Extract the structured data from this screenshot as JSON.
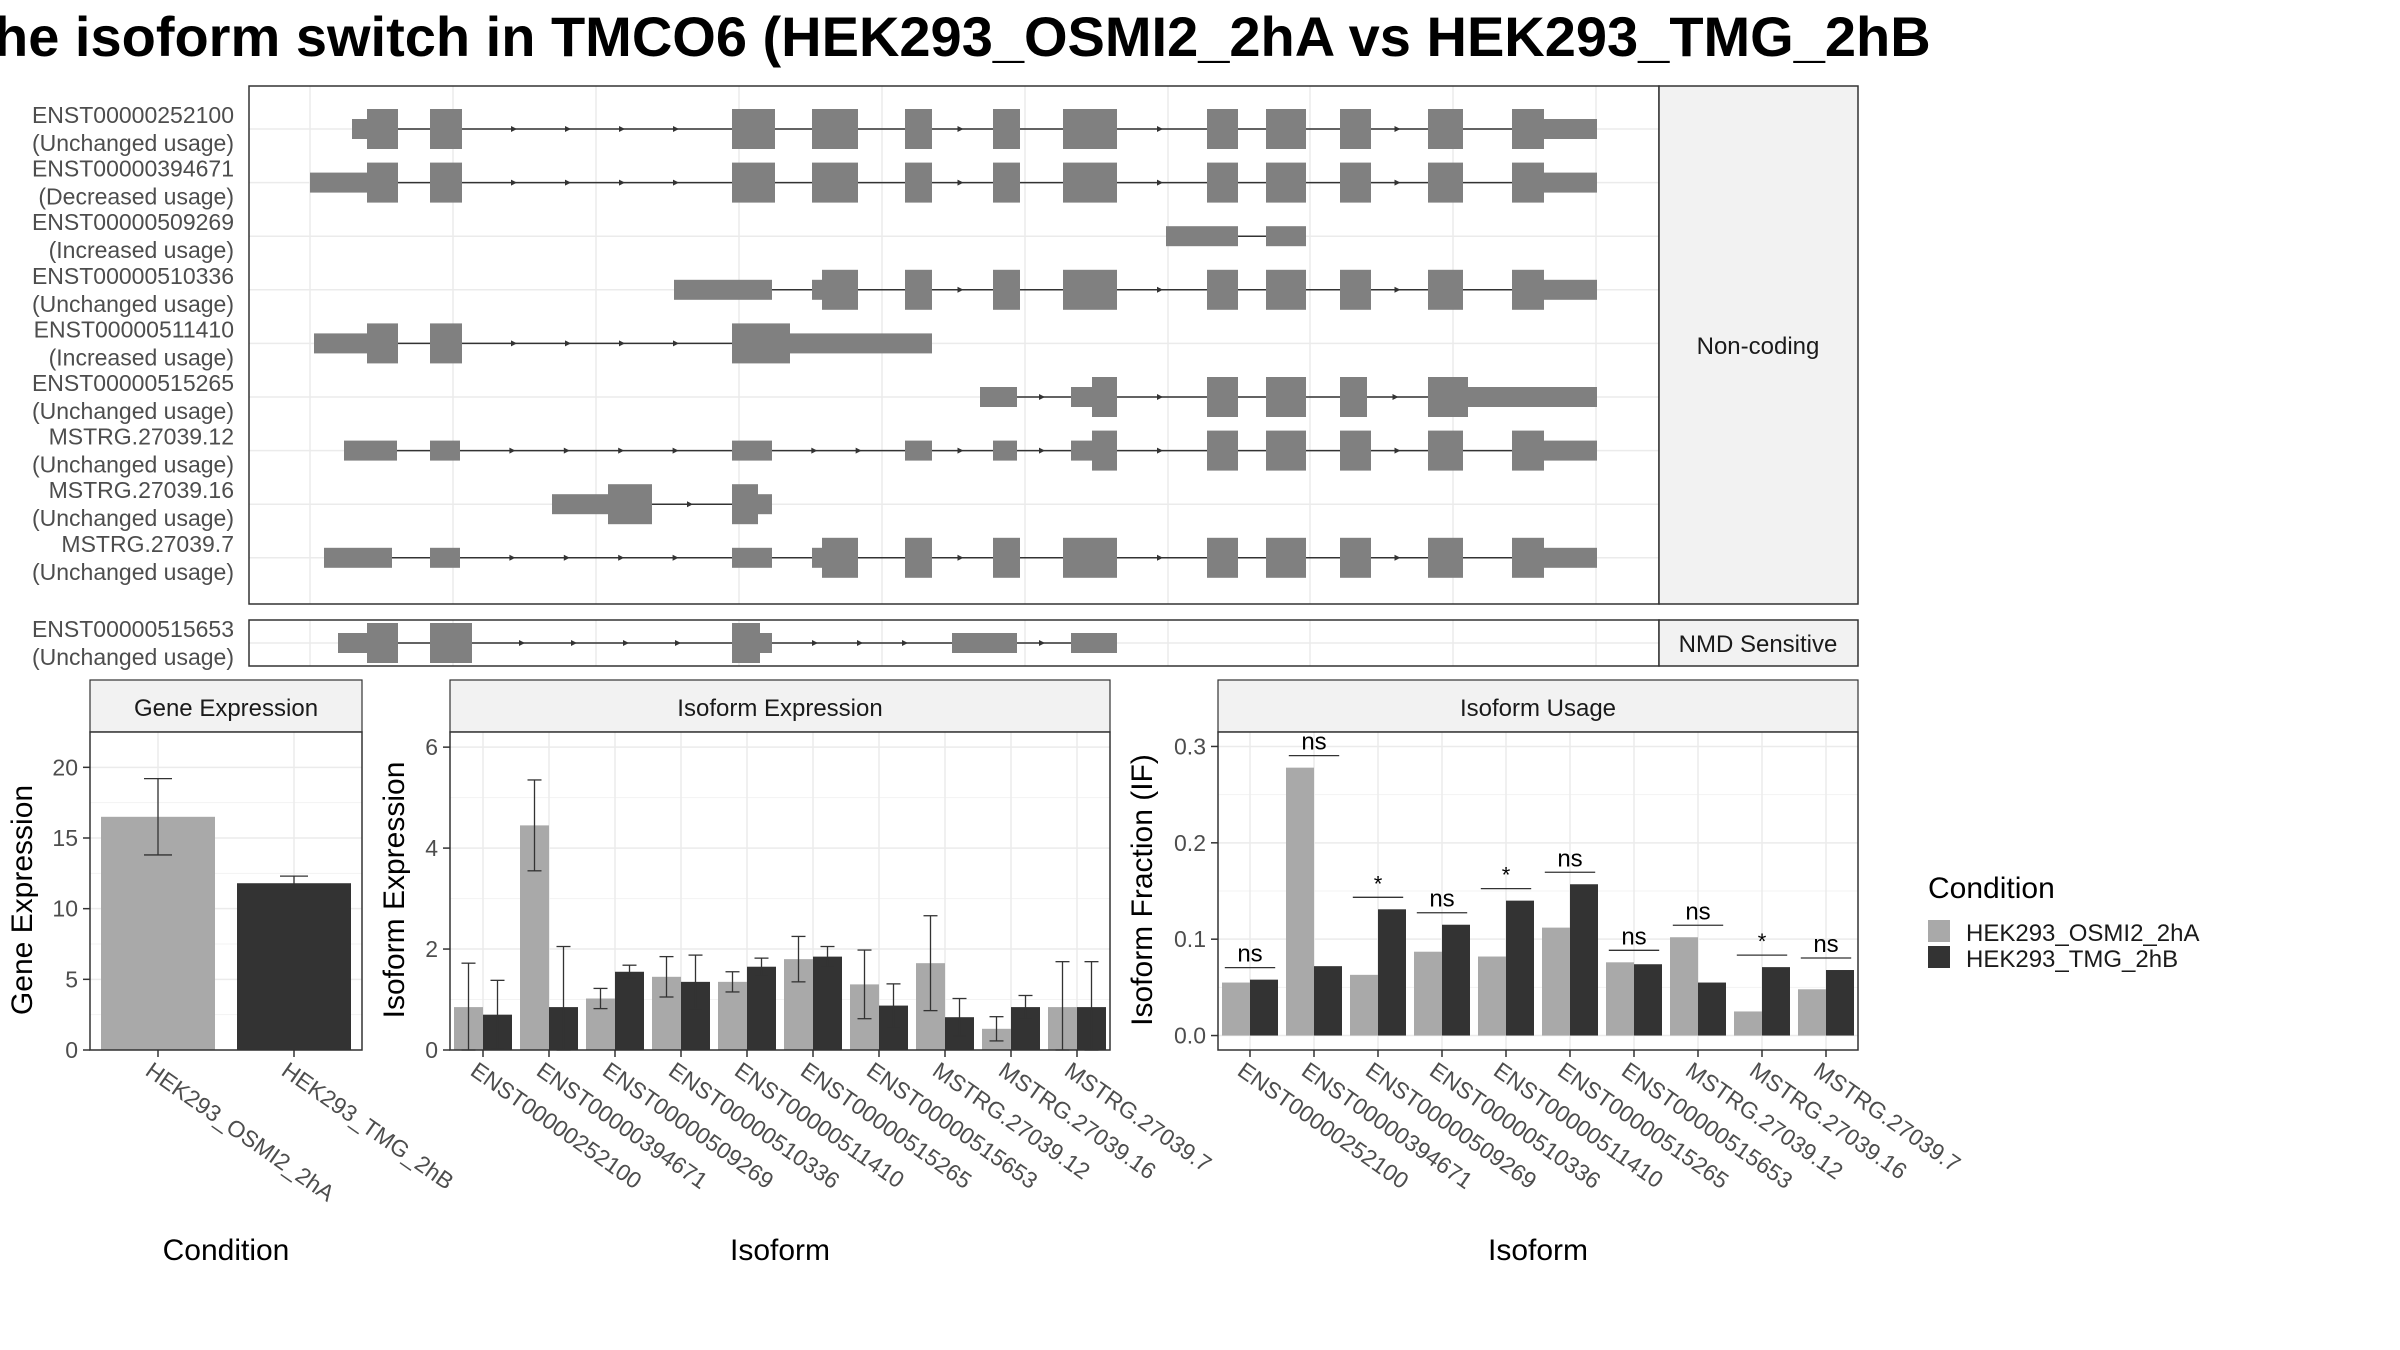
{
  "title": "he isoform switch in TMCO6 (HEK293_OSMI2_2hA vs HEK293_TMG_2hB",
  "colors": {
    "condA": "#a9a9a9",
    "condB": "#333333",
    "gene_model": "#808080",
    "strip": "#f2f2f2",
    "grid": "#ebebeb"
  },
  "chart_data": [
    {
      "type": "gene_structure",
      "strip_label": "Non-coding",
      "isoforms": [
        {
          "name": "ENST00000252100",
          "usage": "(Unchanged usage)"
        },
        {
          "name": "ENST00000394671",
          "usage": "(Decreased usage)"
        },
        {
          "name": "ENST00000509269",
          "usage": "(Increased usage)"
        },
        {
          "name": "ENST00000510336",
          "usage": "(Unchanged usage)"
        },
        {
          "name": "ENST00000511410",
          "usage": "(Increased usage)"
        },
        {
          "name": "ENST00000515265",
          "usage": "(Unchanged usage)"
        },
        {
          "name": "MSTRG.27039.12",
          "usage": "(Unchanged usage)"
        },
        {
          "name": "MSTRG.27039.16",
          "usage": "(Unchanged usage)"
        },
        {
          "name": "MSTRG.27039.7",
          "usage": "(Unchanged usage)"
        }
      ]
    },
    {
      "type": "gene_structure",
      "strip_label": "NMD Sensitive",
      "isoforms": [
        {
          "name": "ENST00000515653",
          "usage": "(Unchanged usage)"
        }
      ]
    },
    {
      "type": "bar",
      "strip_label": "Gene Expression",
      "xlabel": "Condition",
      "ylabel": "Gene Expression",
      "ylim": [
        0,
        22.5
      ],
      "yticks": [
        0,
        5,
        10,
        15,
        20
      ],
      "categories": [
        "HEK293_OSMI2_2hA",
        "HEK293_TMG_2hB"
      ],
      "values": [
        16.5,
        11.8
      ],
      "error": [
        [
          13.8,
          19.2
        ],
        [
          11.3,
          12.3
        ]
      ]
    },
    {
      "type": "bar",
      "strip_label": "Isoform Expression",
      "xlabel": "Isoform",
      "ylabel": "Isoform Expression",
      "ylim": [
        0,
        6.3
      ],
      "yticks": [
        0,
        2,
        4,
        6
      ],
      "categories": [
        "ENST00000252100",
        "ENST00000394671",
        "ENST00000509269",
        "ENST00000510336",
        "ENST00000511410",
        "ENST00000515265",
        "ENST00000515653",
        "MSTRG.27039.12",
        "MSTRG.27039.16",
        "MSTRG.27039.7"
      ],
      "series": [
        {
          "name": "HEK293_OSMI2_2hA",
          "values": [
            0.85,
            4.45,
            1.02,
            1.45,
            1.35,
            1.8,
            1.3,
            1.72,
            0.42,
            0.85
          ],
          "error": [
            [
              0,
              1.72
            ],
            [
              3.55,
              5.35
            ],
            [
              0.82,
              1.22
            ],
            [
              1.05,
              1.85
            ],
            [
              1.15,
              1.55
            ],
            [
              1.35,
              2.25
            ],
            [
              0.62,
              1.98
            ],
            [
              0.78,
              2.66
            ],
            [
              0.18,
              0.66
            ],
            [
              0,
              1.75
            ]
          ]
        },
        {
          "name": "HEK293_TMG_2hB",
          "values": [
            0.7,
            0.85,
            1.55,
            1.35,
            1.65,
            1.85,
            0.88,
            0.65,
            0.85,
            0.85
          ],
          "error": [
            [
              0.02,
              1.38
            ],
            [
              0,
              2.05
            ],
            [
              1.42,
              1.68
            ],
            [
              0.82,
              1.88
            ],
            [
              1.48,
              1.82
            ],
            [
              1.65,
              2.05
            ],
            [
              0.45,
              1.31
            ],
            [
              0.28,
              1.02
            ],
            [
              0.62,
              1.08
            ],
            [
              0,
              1.75
            ]
          ]
        }
      ]
    },
    {
      "type": "bar",
      "strip_label": "Isoform Usage",
      "xlabel": "Isoform",
      "ylabel": "Isoform Fraction (IF)",
      "ylim": [
        -0.015,
        0.315
      ],
      "yticks": [
        0.0,
        0.1,
        0.2,
        0.3
      ],
      "ytick_labels": [
        "0.0",
        "0.1",
        "0.2",
        "0.3"
      ],
      "categories": [
        "ENST00000252100",
        "ENST00000394671",
        "ENST00000509269",
        "ENST00000510336",
        "ENST00000511410",
        "ENST00000515265",
        "ENST00000515653",
        "MSTRG.27039.12",
        "MSTRG.27039.16",
        "MSTRG.27039.7"
      ],
      "series": [
        {
          "name": "HEK293_OSMI2_2hA",
          "values": [
            0.055,
            0.278,
            0.063,
            0.087,
            0.082,
            0.112,
            0.076,
            0.102,
            0.025,
            0.048
          ]
        },
        {
          "name": "HEK293_TMG_2hB",
          "values": [
            0.058,
            0.072,
            0.131,
            0.115,
            0.14,
            0.157,
            0.074,
            0.055,
            0.071,
            0.068
          ]
        }
      ],
      "significance": [
        "ns",
        "ns",
        "*",
        "ns",
        "*",
        "ns",
        "ns",
        "ns",
        "*",
        "ns"
      ]
    }
  ],
  "legend": {
    "title": "Condition",
    "entries": [
      "HEK293_OSMI2_2hA",
      "HEK293_TMG_2hB"
    ]
  }
}
